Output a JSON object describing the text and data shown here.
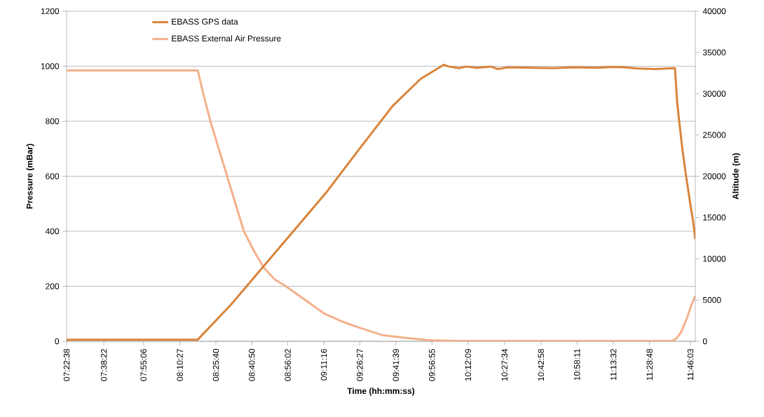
{
  "chart_data": {
    "type": "line",
    "xlabel": "Time (hh:mm:ss)",
    "ylabel": "Pressure (mBar)",
    "y2label": "Altitude (m)",
    "xlim": [
      7.377,
      11.802
    ],
    "xticks": [
      {
        "value": 7.37722,
        "label": "07:22:38"
      },
      {
        "value": 7.63944,
        "label": "07:38:22"
      },
      {
        "value": 7.91833,
        "label": "07:55:06"
      },
      {
        "value": 8.17417,
        "label": "08:10:27"
      },
      {
        "value": 8.42778,
        "label": "08:25:40"
      },
      {
        "value": 8.68056,
        "label": "08:40:50"
      },
      {
        "value": 8.93389,
        "label": "08:56:02"
      },
      {
        "value": 9.18778,
        "label": "09:11:16"
      },
      {
        "value": 9.44083,
        "label": "09:26:27"
      },
      {
        "value": 9.69417,
        "label": "09:41:39"
      },
      {
        "value": 9.94861,
        "label": "09:56:55"
      },
      {
        "value": 10.2025,
        "label": "10:12:09"
      },
      {
        "value": 10.4594,
        "label": "10:27:34"
      },
      {
        "value": 10.7161,
        "label": "10:42:58"
      },
      {
        "value": 10.9697,
        "label": "10:58:11"
      },
      {
        "value": 11.2256,
        "label": "11:13:32"
      },
      {
        "value": 11.48,
        "label": "11:28:48"
      },
      {
        "value": 11.7675,
        "label": "11:46:03"
      }
    ],
    "ylim": [
      0,
      1200
    ],
    "yticks": [
      0,
      200,
      400,
      600,
      800,
      1000,
      1200
    ],
    "y2lim": [
      0,
      40000
    ],
    "y2ticks": [
      0,
      5000,
      10000,
      15000,
      20000,
      25000,
      30000,
      35000,
      40000
    ],
    "grid": "y",
    "legend": "top left",
    "line_style": "solid",
    "series": [
      {
        "name": "EBASS GPS data",
        "color": "#d9843b",
        "axis": "y2",
        "x": [
          7.377,
          8.3,
          8.537,
          8.759,
          8.981,
          9.203,
          9.424,
          9.671,
          9.869,
          10.031,
          10.066,
          10.14,
          10.189,
          10.263,
          10.362,
          10.411,
          10.485,
          10.658,
          10.806,
          10.954,
          11.102,
          11.225,
          11.299,
          11.398,
          11.521,
          11.659,
          11.674,
          11.689,
          11.713,
          11.738,
          11.768,
          11.787,
          11.802
        ],
        "values": [
          200,
          200,
          4500,
          9000,
          13500,
          18000,
          23000,
          28500,
          31800,
          33500,
          33300,
          33100,
          33300,
          33150,
          33300,
          33000,
          33200,
          33150,
          33100,
          33200,
          33150,
          33250,
          33200,
          33050,
          33000,
          33100,
          29000,
          26600,
          23000,
          19900,
          16500,
          14500,
          12400
        ]
      },
      {
        "name": "EBASS External Air Pressure",
        "color": "#f4b08c",
        "x": [
          7.377,
          8.3,
          8.339,
          8.389,
          8.448,
          8.507,
          8.566,
          8.625,
          8.694,
          8.764,
          8.842,
          8.921,
          9.03,
          9.193,
          9.326,
          9.435,
          9.602,
          9.77,
          9.938,
          10.164,
          11.635,
          11.669,
          11.704,
          11.744,
          11.773,
          11.802
        ],
        "values": [
          985,
          985,
          900,
          800,
          700,
          600,
          500,
          400,
          330,
          268,
          225,
          200,
          160,
          100,
          70,
          50,
          22,
          12,
          4,
          1,
          1,
          10,
          35,
          85,
          130,
          165
        ]
      }
    ]
  }
}
